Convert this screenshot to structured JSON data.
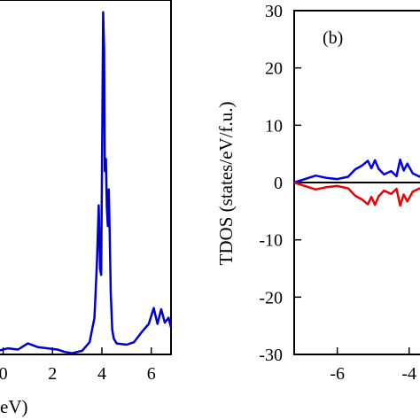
{
  "chart_data": [
    {
      "panel": "a",
      "type": "line",
      "title": "",
      "xlabel": "eV)",
      "ylabel": "",
      "xlim": [
        -0.2,
        6.8
      ],
      "ylim": [
        0,
        29
      ],
      "xticks": [
        0,
        2,
        4,
        6
      ],
      "xtick_labels": [
        "0",
        "2",
        "4",
        "6"
      ],
      "grid": false,
      "series": [
        {
          "color": "#0000cc",
          "points": [
            [
              -0.2,
              0.3
            ],
            [
              0.2,
              0.5
            ],
            [
              0.6,
              0.4
            ],
            [
              1.0,
              0.9
            ],
            [
              1.4,
              0.6
            ],
            [
              1.8,
              0.5
            ],
            [
              2.2,
              0.4
            ],
            [
              2.5,
              0.2
            ],
            [
              2.8,
              0.1
            ],
            [
              3.2,
              0.3
            ],
            [
              3.5,
              1.0
            ],
            [
              3.7,
              3.0
            ],
            [
              3.8,
              7.5
            ],
            [
              3.87,
              12.2
            ],
            [
              3.93,
              7.0
            ],
            [
              3.97,
              6.5
            ],
            [
              4.02,
              20.0
            ],
            [
              4.05,
              28.0
            ],
            [
              4.09,
              25.0
            ],
            [
              4.12,
              15.0
            ],
            [
              4.16,
              16.0
            ],
            [
              4.2,
              12.0
            ],
            [
              4.24,
              10.5
            ],
            [
              4.28,
              13.5
            ],
            [
              4.32,
              9.5
            ],
            [
              4.36,
              5.0
            ],
            [
              4.42,
              2.0
            ],
            [
              4.48,
              1.3
            ],
            [
              4.6,
              0.9
            ],
            [
              5.0,
              0.8
            ],
            [
              5.3,
              1.0
            ],
            [
              5.6,
              1.8
            ],
            [
              5.9,
              2.5
            ],
            [
              6.1,
              3.8
            ],
            [
              6.25,
              2.5
            ],
            [
              6.4,
              3.7
            ],
            [
              6.55,
              2.6
            ],
            [
              6.7,
              3.0
            ],
            [
              6.8,
              2.2
            ]
          ]
        }
      ]
    },
    {
      "panel": "b",
      "type": "line",
      "title": "",
      "xlabel": "",
      "ylabel": "TDOS (states/eV/f.u.)",
      "annotation": "(b)",
      "xlim": [
        -7.2,
        -3.5
      ],
      "ylim": [
        -30,
        30
      ],
      "yticks": [
        -30,
        -20,
        -10,
        0,
        10,
        20,
        30
      ],
      "ytick_labels": [
        "-30",
        "-20",
        "-10",
        "0",
        "10",
        "20",
        "30"
      ],
      "xticks": [
        -6,
        -4
      ],
      "xtick_labels": [
        "-6",
        "-4"
      ],
      "grid": false,
      "zero_line": true,
      "series": [
        {
          "color": "#0000ee",
          "points": [
            [
              -7.2,
              0.0
            ],
            [
              -6.9,
              0.6
            ],
            [
              -6.6,
              1.2
            ],
            [
              -6.3,
              0.8
            ],
            [
              -6.0,
              0.6
            ],
            [
              -5.7,
              1.0
            ],
            [
              -5.5,
              2.3
            ],
            [
              -5.3,
              3.0
            ],
            [
              -5.15,
              3.8
            ],
            [
              -5.05,
              2.5
            ],
            [
              -4.95,
              3.9
            ],
            [
              -4.85,
              2.4
            ],
            [
              -4.7,
              1.4
            ],
            [
              -4.5,
              2.0
            ],
            [
              -4.35,
              1.1
            ],
            [
              -4.25,
              4.0
            ],
            [
              -4.15,
              2.1
            ],
            [
              -4.05,
              3.3
            ],
            [
              -3.9,
              1.6
            ],
            [
              -3.7,
              1.0
            ],
            [
              -3.5,
              1.5
            ]
          ]
        },
        {
          "color": "#ee0000",
          "points": [
            [
              -7.2,
              0.0
            ],
            [
              -6.9,
              -0.6
            ],
            [
              -6.6,
              -1.2
            ],
            [
              -6.3,
              -0.8
            ],
            [
              -6.0,
              -0.6
            ],
            [
              -5.7,
              -1.0
            ],
            [
              -5.5,
              -2.3
            ],
            [
              -5.3,
              -3.0
            ],
            [
              -5.15,
              -3.8
            ],
            [
              -5.05,
              -2.5
            ],
            [
              -4.95,
              -3.9
            ],
            [
              -4.85,
              -2.4
            ],
            [
              -4.7,
              -1.4
            ],
            [
              -4.5,
              -2.0
            ],
            [
              -4.35,
              -1.1
            ],
            [
              -4.25,
              -4.0
            ],
            [
              -4.15,
              -2.1
            ],
            [
              -4.05,
              -3.3
            ],
            [
              -3.9,
              -1.6
            ],
            [
              -3.7,
              -1.0
            ],
            [
              -3.5,
              -1.5
            ]
          ]
        }
      ]
    }
  ]
}
